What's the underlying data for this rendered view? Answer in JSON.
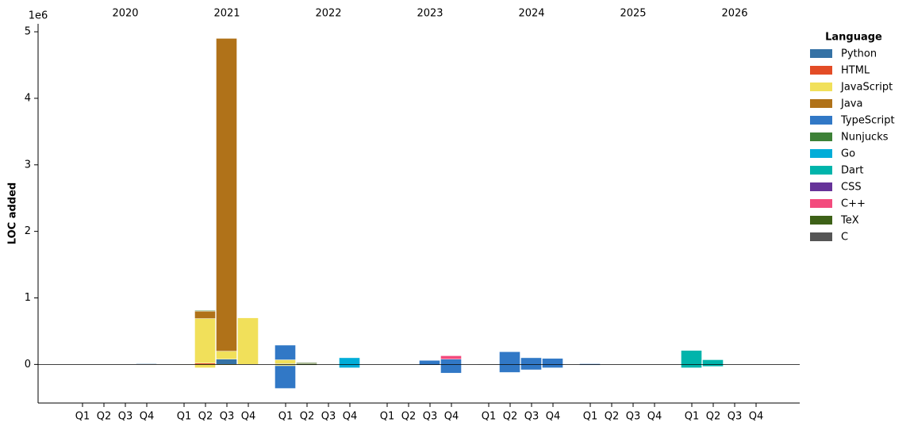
{
  "chart_data": {
    "type": "stacked-bar",
    "y_label": "LOC added",
    "y_offset_label": "1e6",
    "legend_title": "Language",
    "groups": [
      "2020",
      "2021",
      "2022",
      "2023",
      "2024",
      "2025",
      "2026"
    ],
    "categories": [
      "Q1",
      "Q2",
      "Q3",
      "Q4",
      "Q1",
      "Q2",
      "Q3",
      "Q4",
      "Q1",
      "Q2",
      "Q3",
      "Q4",
      "Q1",
      "Q2",
      "Q3",
      "Q4",
      "Q1",
      "Q2",
      "Q3",
      "Q4",
      "Q1",
      "Q2",
      "Q3",
      "Q4",
      "Q1",
      "Q2",
      "Q3",
      "Q4"
    ],
    "ylim": [
      -0.58,
      5.12
    ],
    "yticks": [
      0,
      1,
      2,
      3,
      4,
      5
    ],
    "series": [
      {
        "name": "Python",
        "color": "#3572a5",
        "values": [
          0,
          0,
          0,
          0.01,
          0,
          0,
          0.08,
          0,
          0.01,
          0,
          0,
          0,
          0,
          0,
          0,
          0,
          0,
          0,
          0,
          0,
          0,
          0,
          0,
          0,
          0,
          0,
          0,
          0
        ],
        "removed": [
          0,
          0,
          0,
          0,
          0,
          0,
          0,
          0,
          0,
          0,
          0,
          0,
          0,
          0,
          0,
          0,
          0,
          0,
          0,
          0,
          0,
          0,
          0,
          0,
          0,
          0,
          0,
          0
        ]
      },
      {
        "name": "HTML",
        "color": "#e34c26",
        "values": [
          0,
          0,
          0,
          0,
          0,
          0.02,
          0,
          0,
          0,
          0,
          0,
          0,
          0,
          0,
          0,
          0,
          0,
          0,
          0,
          0,
          0,
          0,
          0,
          0,
          0,
          0,
          0,
          0
        ],
        "removed": [
          0,
          0,
          0,
          0,
          0,
          0,
          0,
          0,
          0,
          0,
          0,
          0,
          0,
          0,
          0,
          0,
          0,
          0,
          0,
          0,
          0,
          0,
          0,
          0,
          0,
          0,
          0,
          0
        ]
      },
      {
        "name": "JavaScript",
        "color": "#f1e05a",
        "values": [
          0,
          0,
          0,
          0,
          0.005,
          0.67,
          0.12,
          0.7,
          0.06,
          0,
          0,
          0,
          0,
          0,
          0,
          0,
          0,
          0,
          0,
          0,
          0,
          0,
          0,
          0,
          0,
          0,
          0,
          0
        ],
        "removed": [
          0,
          0,
          0,
          0,
          0,
          -0.05,
          -0.01,
          0,
          -0.02,
          0,
          0,
          0,
          0,
          0,
          0,
          0,
          0,
          0,
          0,
          0,
          0,
          0,
          0,
          0,
          0,
          0,
          0,
          0
        ]
      },
      {
        "name": "Java",
        "color": "#b07219",
        "values": [
          0,
          0,
          0,
          0,
          0,
          0.11,
          4.7,
          0,
          0,
          0.01,
          0,
          0,
          0,
          0,
          0,
          0,
          0,
          0,
          0,
          0,
          0,
          0,
          0,
          0,
          0,
          0,
          0,
          0
        ],
        "removed": [
          0,
          0,
          0,
          0,
          0,
          0,
          0,
          0,
          0,
          0,
          0,
          0,
          0,
          0,
          0,
          0,
          0,
          0,
          0,
          0,
          0,
          0,
          0,
          0,
          0,
          0,
          0,
          0
        ]
      },
      {
        "name": "TypeScript",
        "color": "#3178c6",
        "values": [
          0,
          0,
          0,
          0,
          0,
          0,
          0,
          0,
          0.22,
          0,
          0,
          0,
          0,
          0,
          0.06,
          0.08,
          0,
          0.19,
          0.1,
          0.09,
          0.01,
          0,
          0,
          0,
          0,
          0,
          0,
          0
        ],
        "removed": [
          0,
          0,
          0,
          0,
          0,
          0,
          0,
          0,
          -0.34,
          0,
          0,
          0,
          0,
          0,
          -0.01,
          -0.13,
          0,
          -0.12,
          -0.08,
          -0.05,
          -0.005,
          0,
          0,
          0,
          0,
          0,
          0,
          0
        ]
      },
      {
        "name": "Nunjucks",
        "color": "#3d8137",
        "values": [
          0,
          0,
          0,
          0,
          0,
          0.01,
          0,
          0,
          0,
          0.01,
          0,
          0,
          0,
          0,
          0,
          0,
          0,
          0,
          0,
          0,
          0,
          0,
          0,
          0,
          0,
          0,
          0,
          0
        ],
        "removed": [
          0,
          0,
          0,
          0,
          0,
          0,
          0,
          0,
          0,
          0,
          0,
          0,
          0,
          0,
          0,
          0,
          0,
          0,
          0,
          0,
          0,
          0,
          0,
          0,
          0,
          0,
          0,
          0
        ]
      },
      {
        "name": "Go",
        "color": "#00add8",
        "values": [
          0,
          0,
          0,
          0,
          0,
          0,
          0,
          0,
          0,
          0,
          0,
          0.1,
          0,
          0,
          0,
          0,
          0,
          0,
          0,
          0,
          0,
          0,
          0,
          0,
          0,
          0,
          0,
          0
        ],
        "removed": [
          0,
          0,
          0,
          0,
          0,
          0,
          0,
          0,
          0,
          0,
          0,
          -0.05,
          0,
          0,
          0,
          0,
          0,
          0,
          0,
          0,
          0,
          0,
          0,
          0,
          0,
          0,
          0,
          0
        ]
      },
      {
        "name": "Dart",
        "color": "#00b4ab",
        "values": [
          0,
          0,
          0,
          0,
          0,
          0,
          0,
          0,
          0,
          0,
          0,
          0,
          0,
          0,
          0,
          0,
          0,
          0,
          0,
          0,
          0,
          0,
          0,
          0,
          0.21,
          0.07,
          0,
          0
        ],
        "removed": [
          0,
          0,
          0,
          0,
          0,
          0,
          0,
          0,
          0,
          0,
          0,
          0,
          0,
          0,
          0,
          0,
          0,
          0,
          0,
          0,
          0,
          0,
          0,
          0,
          -0.05,
          -0.03,
          0,
          0
        ]
      },
      {
        "name": "CSS",
        "color": "#663399",
        "values": [
          0,
          0,
          0,
          0,
          0,
          0,
          0,
          0,
          0,
          0,
          0,
          0,
          0,
          0,
          0,
          0,
          0,
          0,
          0,
          0,
          0,
          0,
          0,
          0,
          0,
          0,
          0,
          0
        ],
        "removed": [
          0,
          0,
          0,
          0,
          0,
          0,
          0,
          0,
          0,
          0,
          0,
          0,
          0,
          0,
          0,
          0,
          0,
          0,
          0,
          0,
          0,
          0,
          0,
          0,
          0,
          0,
          0,
          0
        ]
      },
      {
        "name": "C++",
        "color": "#f34b7d",
        "values": [
          0,
          0,
          0,
          0,
          0,
          0,
          0,
          0,
          0,
          0,
          0,
          0,
          0,
          0,
          0,
          0.05,
          0,
          0,
          0,
          0,
          0,
          0,
          0,
          0,
          0,
          0,
          0,
          0
        ],
        "removed": [
          0,
          0,
          0,
          0,
          0,
          0,
          0,
          0,
          0,
          0,
          0,
          0,
          0,
          0,
          0,
          0,
          0,
          0,
          0,
          0,
          0,
          0,
          0,
          0,
          0,
          0,
          0,
          0
        ]
      },
      {
        "name": "TeX",
        "color": "#3d6117",
        "values": [
          0,
          0,
          0,
          0,
          0,
          0,
          0,
          0,
          0,
          0.01,
          0,
          0,
          0,
          0,
          0,
          0,
          0,
          0,
          0,
          0,
          0,
          0,
          0,
          0,
          0,
          0,
          0,
          0
        ],
        "removed": [
          0,
          0,
          0,
          0,
          0,
          0,
          0,
          0,
          0,
          -0.01,
          0,
          0,
          0,
          0,
          0,
          0,
          0,
          0,
          0,
          0,
          0,
          0,
          0,
          0,
          0,
          0,
          0,
          0
        ]
      },
      {
        "name": "C",
        "color": "#555555",
        "values": [
          0,
          0,
          0,
          0,
          0,
          0,
          0,
          0,
          0,
          0,
          0,
          0,
          0,
          0,
          0,
          0,
          0.005,
          0,
          0,
          0,
          0,
          0,
          0,
          0,
          0,
          0,
          0,
          0
        ],
        "removed": [
          0,
          0,
          0,
          0,
          0,
          0,
          0,
          0,
          0,
          0,
          0,
          0,
          0,
          0,
          0,
          0,
          0,
          0,
          0,
          0,
          0,
          0,
          0,
          0,
          0,
          0,
          0,
          0
        ]
      }
    ]
  }
}
